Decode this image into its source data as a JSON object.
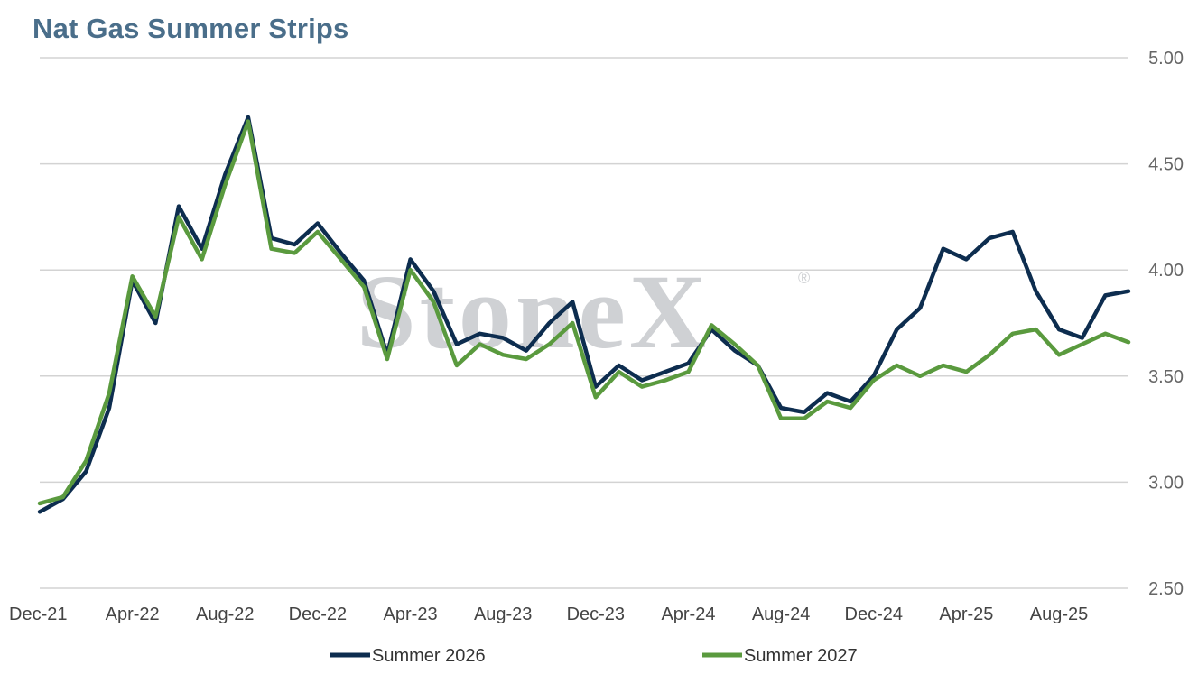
{
  "chart_data": {
    "type": "line",
    "title": "Nat Gas Summer Strips",
    "xlabel": "",
    "ylabel": "",
    "ylim": [
      2.5,
      5.0
    ],
    "yticks": [
      "5.00",
      "4.50",
      "4.00",
      "3.50",
      "3.00",
      "2.50"
    ],
    "y_axis_side": "right",
    "grid": true,
    "legend_placement": "bottom",
    "watermark": "StoneX",
    "x_tick_labels": [
      "Dec-21",
      "Apr-22",
      "Aug-22",
      "Dec-22",
      "Apr-23",
      "Aug-23",
      "Dec-23",
      "Apr-24",
      "Aug-24",
      "Dec-24",
      "Apr-25",
      "Aug-25"
    ],
    "x": [
      "Dec-21",
      "Jan-22",
      "Feb-22",
      "Mar-22",
      "Apr-22",
      "May-22",
      "Jun-22",
      "Jul-22",
      "Aug-22",
      "Sep-22",
      "Oct-22",
      "Nov-22",
      "Dec-22",
      "Jan-23",
      "Feb-23",
      "Mar-23",
      "Apr-23",
      "May-23",
      "Jun-23",
      "Jul-23",
      "Aug-23",
      "Sep-23",
      "Oct-23",
      "Nov-23",
      "Dec-23",
      "Jan-24",
      "Feb-24",
      "Mar-24",
      "Apr-24",
      "May-24",
      "Jun-24",
      "Jul-24",
      "Aug-24",
      "Sep-24",
      "Oct-24",
      "Nov-24",
      "Dec-24",
      "Jan-25",
      "Feb-25",
      "Mar-25",
      "Apr-25",
      "May-25",
      "Jun-25",
      "Jul-25",
      "Aug-25",
      "Sep-25",
      "Oct-25",
      "Nov-25"
    ],
    "series": [
      {
        "name": "Summer 2026",
        "color": "#0d2d4f",
        "values": [
          2.86,
          2.92,
          3.05,
          3.35,
          3.95,
          3.75,
          4.3,
          4.1,
          4.45,
          4.72,
          4.15,
          4.12,
          4.22,
          4.08,
          3.95,
          3.6,
          4.05,
          3.9,
          3.65,
          3.7,
          3.68,
          3.62,
          3.75,
          3.85,
          3.45,
          3.55,
          3.48,
          3.52,
          3.56,
          3.72,
          3.62,
          3.55,
          3.35,
          3.33,
          3.42,
          3.38,
          3.5,
          3.72,
          3.82,
          4.1,
          4.05,
          4.15,
          4.18,
          3.9,
          3.72,
          3.68,
          3.88,
          3.9
        ]
      },
      {
        "name": "Summer 2027",
        "color": "#5a9a3e",
        "values": [
          2.9,
          2.93,
          3.1,
          3.42,
          3.97,
          3.78,
          4.25,
          4.05,
          4.4,
          4.7,
          4.1,
          4.08,
          4.18,
          4.05,
          3.92,
          3.58,
          4.0,
          3.85,
          3.55,
          3.65,
          3.6,
          3.58,
          3.65,
          3.75,
          3.4,
          3.52,
          3.45,
          3.48,
          3.52,
          3.74,
          3.65,
          3.55,
          3.3,
          3.3,
          3.38,
          3.35,
          3.48,
          3.55,
          3.5,
          3.55,
          3.52,
          3.6,
          3.7,
          3.72,
          3.6,
          3.65,
          3.7,
          3.66
        ]
      }
    ]
  }
}
